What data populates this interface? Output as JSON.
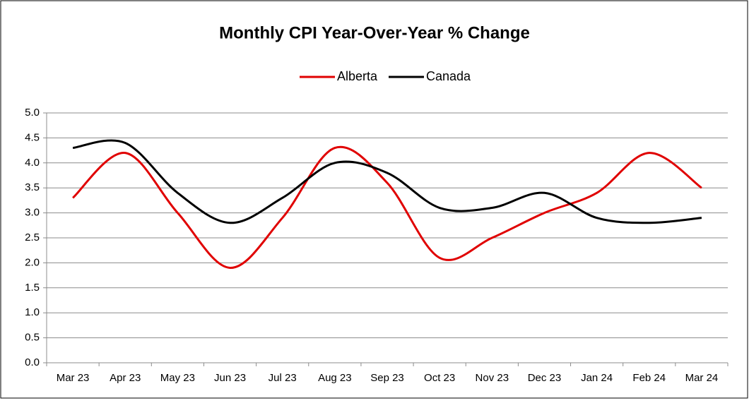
{
  "chart_data": {
    "type": "line",
    "title": "Monthly CPI Year-Over-Year % Change",
    "categories": [
      "Mar 23",
      "Apr 23",
      "May 23",
      "Jun 23",
      "Jul 23",
      "Aug 23",
      "Sep 23",
      "Oct 23",
      "Nov 23",
      "Dec 23",
      "Jan 24",
      "Feb 24",
      "Mar 24"
    ],
    "series": [
      {
        "name": "Alberta",
        "color": "#e00000",
        "values": [
          3.3,
          4.2,
          3.0,
          1.9,
          2.9,
          4.3,
          3.6,
          2.1,
          2.5,
          3.0,
          3.4,
          4.2,
          3.5
        ]
      },
      {
        "name": "Canada",
        "color": "#000000",
        "values": [
          4.3,
          4.4,
          3.4,
          2.8,
          3.3,
          4.0,
          3.8,
          3.1,
          3.1,
          3.4,
          2.9,
          2.8,
          2.9
        ]
      }
    ],
    "ylim": [
      0,
      5
    ],
    "yticks": [
      {
        "value": 0,
        "label": "0.0"
      },
      {
        "value": 0.5,
        "label": "0.5"
      },
      {
        "value": 1,
        "label": "1.0"
      },
      {
        "value": 1.5,
        "label": "1.5"
      },
      {
        "value": 2,
        "label": "2.0"
      },
      {
        "value": 2.5,
        "label": "2.5"
      },
      {
        "value": 3,
        "label": "3.0"
      },
      {
        "value": 3.5,
        "label": "3.5"
      },
      {
        "value": 4,
        "label": "4.0"
      },
      {
        "value": 4.5,
        "label": "4.5"
      },
      {
        "value": 5,
        "label": "5.0"
      }
    ],
    "grid": true,
    "smooth": true,
    "legend": "top"
  }
}
